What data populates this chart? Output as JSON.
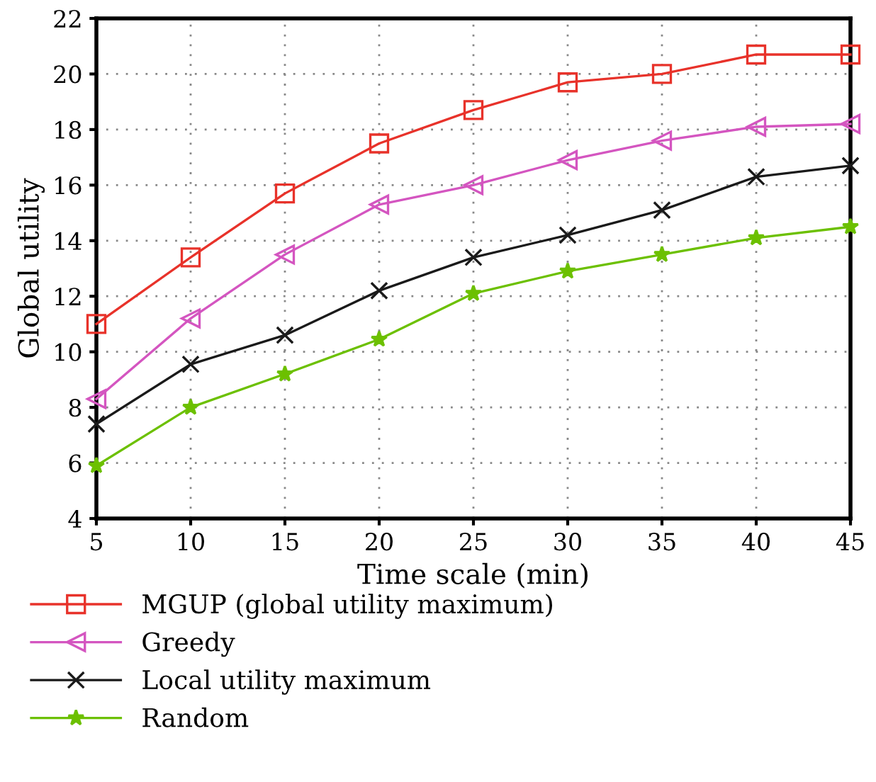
{
  "chart_data": {
    "type": "line",
    "xlabel": "Time scale (min)",
    "ylabel": "Global utility",
    "x": [
      5,
      10,
      15,
      20,
      25,
      30,
      35,
      40,
      45
    ],
    "xlim": [
      5,
      45
    ],
    "xticks": [
      5,
      10,
      15,
      20,
      25,
      30,
      35,
      40,
      45
    ],
    "ylim": [
      4,
      22
    ],
    "yticks": [
      4,
      6,
      8,
      10,
      12,
      14,
      16,
      18,
      20,
      22
    ],
    "grid": true,
    "legend": "bottom",
    "line_style": "solid",
    "series": [
      {
        "name": "MGUP (global utility maximum)",
        "color": "#e8322a",
        "marker": "square",
        "values": [
          11.0,
          13.4,
          15.7,
          17.5,
          18.7,
          19.7,
          20.0,
          20.7,
          20.7
        ]
      },
      {
        "name": "Greedy",
        "color": "#d455c0",
        "marker": "triangle",
        "values": [
          8.3,
          11.2,
          13.5,
          15.3,
          16.0,
          16.9,
          17.6,
          18.1,
          18.2
        ]
      },
      {
        "name": "Local utility maximum",
        "color": "#1a1a1a",
        "marker": "cross",
        "values": [
          7.4,
          9.55,
          10.6,
          12.2,
          13.4,
          14.2,
          15.1,
          16.3,
          16.7
        ]
      },
      {
        "name": "Random",
        "color": "#6cc000",
        "marker": "star",
        "values": [
          5.9,
          8.0,
          9.2,
          10.45,
          12.1,
          12.9,
          13.5,
          14.1,
          14.5
        ]
      }
    ]
  }
}
